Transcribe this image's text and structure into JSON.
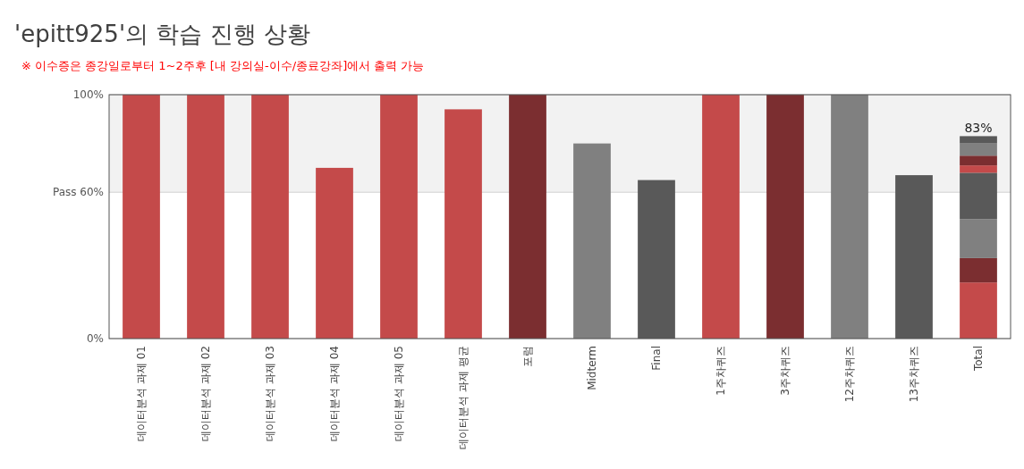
{
  "chart_data": {
    "type": "bar",
    "title": "'epitt925'의 학습 진행 상황",
    "subtitle": "※ 이수증은 종강일로부터 1~2주후 [내 강의실-이수/종료강좌]에서 출력 가능",
    "categories": [
      "데이터분석 과제 01",
      "데이터분석 과제 02",
      "데이터분석 과제 03",
      "데이터분석 과제 04",
      "데이터분석 과제 05",
      "데이터분석 과제 평균",
      "포럼",
      "Midterm",
      "Final",
      "1주차퀴즈",
      "3주차퀴즈",
      "12주차퀴즈",
      "13주차퀴즈",
      "Total"
    ],
    "stacked": true,
    "series": [
      {
        "values": [
          100,
          100,
          100,
          70,
          100,
          94,
          100,
          80,
          65,
          100,
          100,
          100,
          67,
          null
        ],
        "colors": [
          "#c44a4a",
          "#c44a4a",
          "#c44a4a",
          "#c44a4a",
          "#c44a4a",
          "#c44a4a",
          "#7b2e30",
          "#808080",
          "#595959",
          "#c44a4a",
          "#7b2e30",
          "#808080",
          "#595959",
          null
        ]
      },
      {
        "color": "#c44a4a",
        "values": [
          null,
          null,
          null,
          null,
          null,
          null,
          null,
          null,
          null,
          null,
          null,
          null,
          null,
          23
        ]
      },
      {
        "color": "#7b2e30",
        "values": [
          null,
          null,
          null,
          null,
          null,
          null,
          null,
          null,
          null,
          null,
          null,
          null,
          null,
          10
        ]
      },
      {
        "color": "#808080",
        "values": [
          null,
          null,
          null,
          null,
          null,
          null,
          null,
          null,
          null,
          null,
          null,
          null,
          null,
          16
        ]
      },
      {
        "color": "#595959",
        "values": [
          null,
          null,
          null,
          null,
          null,
          null,
          null,
          null,
          null,
          null,
          null,
          null,
          null,
          19
        ]
      },
      {
        "color": "#c44a4a",
        "values": [
          null,
          null,
          null,
          null,
          null,
          null,
          null,
          null,
          null,
          null,
          null,
          null,
          null,
          3
        ]
      },
      {
        "color": "#7b2e30",
        "values": [
          null,
          null,
          null,
          null,
          null,
          null,
          null,
          null,
          null,
          null,
          null,
          null,
          null,
          4
        ]
      },
      {
        "color": "#808080",
        "values": [
          null,
          null,
          null,
          null,
          null,
          null,
          null,
          null,
          null,
          null,
          null,
          null,
          null,
          5
        ]
      },
      {
        "color": "#595959",
        "values": [
          null,
          null,
          null,
          null,
          null,
          null,
          null,
          null,
          null,
          null,
          null,
          null,
          null,
          3
        ]
      }
    ],
    "totals": [
      null,
      null,
      null,
      null,
      null,
      null,
      null,
      null,
      null,
      null,
      null,
      null,
      null,
      "83%"
    ],
    "ylim": [
      0,
      100
    ],
    "yticks": [
      {
        "value": 0,
        "label": "0%"
      },
      {
        "value": 60,
        "label": "Pass 60%"
      },
      {
        "value": 100,
        "label": "100%"
      }
    ],
    "bands": [
      {
        "axis": "y",
        "from": 60,
        "to": 100,
        "color": "#f2f2f2"
      }
    ],
    "grid": "y"
  }
}
